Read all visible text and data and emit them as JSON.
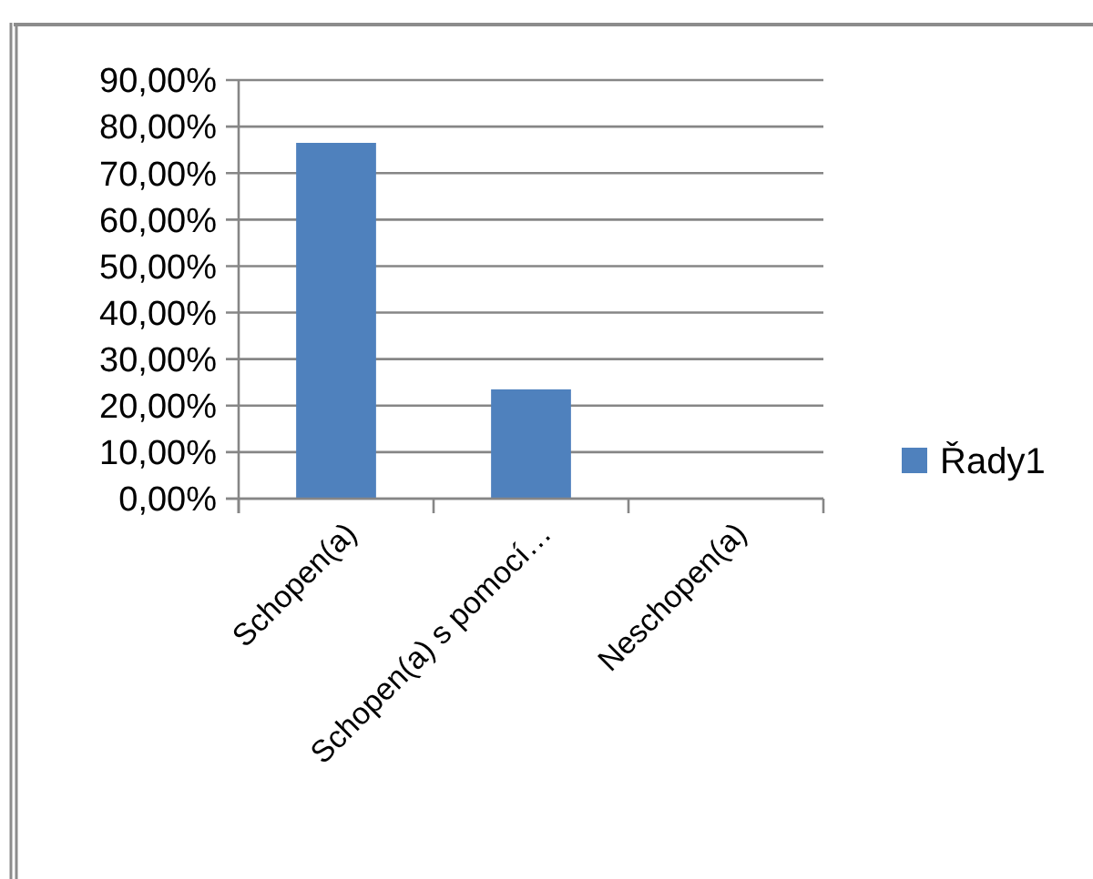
{
  "chart_data": {
    "type": "bar",
    "categories": [
      "Schopen(a)",
      "Schopen(a) s pomocí…",
      "Neschopen(a)"
    ],
    "series": [
      {
        "name": "Řady1",
        "color": "#4f81bd",
        "values": [
          76.5,
          23.5,
          0
        ]
      }
    ],
    "ylim": [
      0,
      90
    ],
    "yticks": [
      {
        "value": 0,
        "label": "0,00%"
      },
      {
        "value": 10,
        "label": "10,00%"
      },
      {
        "value": 20,
        "label": "20,00%"
      },
      {
        "value": 30,
        "label": "30,00%"
      },
      {
        "value": 40,
        "label": "40,00%"
      },
      {
        "value": 50,
        "label": "50,00%"
      },
      {
        "value": 60,
        "label": "60,00%"
      },
      {
        "value": 70,
        "label": "70,00%"
      },
      {
        "value": 80,
        "label": "80,00%"
      },
      {
        "value": 90,
        "label": "90,00%"
      }
    ],
    "grid": "y",
    "legend": "right"
  }
}
